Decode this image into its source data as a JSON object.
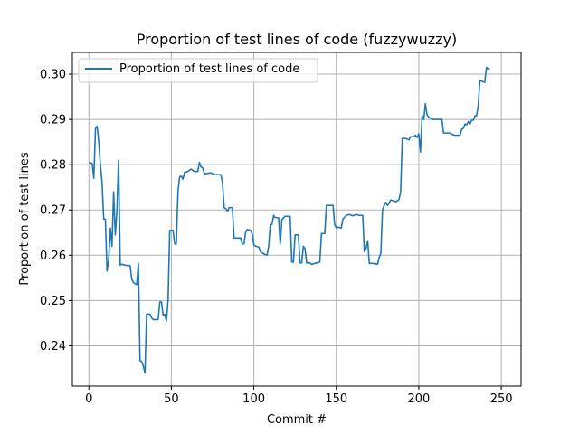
{
  "chart_data": {
    "type": "line",
    "title": "Proportion of test lines of code (fuzzywuzzy)",
    "xlabel": "Commit #",
    "ylabel": "Proportion of test lines",
    "xlim": [
      -10,
      262
    ],
    "ylim": [
      0.2311,
      0.3048
    ],
    "x_ticks": [
      0,
      50,
      100,
      150,
      200,
      250
    ],
    "y_ticks": [
      0.24,
      0.25,
      0.26,
      0.27,
      0.28,
      0.29,
      0.3
    ],
    "x_tick_labels": [
      "0",
      "50",
      "100",
      "150",
      "200",
      "250"
    ],
    "y_tick_labels": [
      "0.24",
      "0.25",
      "0.26",
      "0.27",
      "0.28",
      "0.29",
      "0.30"
    ],
    "grid": true,
    "legend": "upper-left",
    "series": [
      {
        "name": "Proportion of test lines of code",
        "color": "#1f77b4",
        "points": [
          [
            0,
            0.2805
          ],
          [
            2,
            0.2803
          ],
          [
            3,
            0.277
          ],
          [
            4,
            0.288
          ],
          [
            5,
            0.2885
          ],
          [
            6,
            0.285
          ],
          [
            7,
            0.28
          ],
          [
            8,
            0.276
          ],
          [
            9,
            0.268
          ],
          [
            10,
            0.268
          ],
          [
            11,
            0.2565
          ],
          [
            12,
            0.259
          ],
          [
            13,
            0.266
          ],
          [
            14,
            0.262
          ],
          [
            15,
            0.274
          ],
          [
            16,
            0.2645
          ],
          [
            17,
            0.27
          ],
          [
            18,
            0.281
          ],
          [
            19,
            0.2578
          ],
          [
            20,
            0.258
          ],
          [
            22,
            0.2578
          ],
          [
            25,
            0.2577
          ],
          [
            26,
            0.2547
          ],
          [
            27,
            0.254
          ],
          [
            28,
            0.2537
          ],
          [
            29,
            0.2535
          ],
          [
            30,
            0.2582
          ],
          [
            31,
            0.2367
          ],
          [
            32,
            0.2365
          ],
          [
            33,
            0.2355
          ],
          [
            34,
            0.234
          ],
          [
            35,
            0.247
          ],
          [
            37,
            0.247
          ],
          [
            38,
            0.2462
          ],
          [
            39,
            0.2458
          ],
          [
            42,
            0.2458
          ],
          [
            43,
            0.2497
          ],
          [
            44,
            0.2497
          ],
          [
            45,
            0.2468
          ],
          [
            46,
            0.247
          ],
          [
            47,
            0.2455
          ],
          [
            48,
            0.25
          ],
          [
            49,
            0.2655
          ],
          [
            51,
            0.2655
          ],
          [
            52,
            0.2625
          ],
          [
            53,
            0.2625
          ],
          [
            54,
            0.274
          ],
          [
            55,
            0.2773
          ],
          [
            56,
            0.2775
          ],
          [
            57,
            0.2768
          ],
          [
            58,
            0.2783
          ],
          [
            60,
            0.2785
          ],
          [
            61,
            0.2788
          ],
          [
            62,
            0.279
          ],
          [
            64,
            0.2785
          ],
          [
            66,
            0.2785
          ],
          [
            67,
            0.2805
          ],
          [
            68,
            0.2795
          ],
          [
            69,
            0.2793
          ],
          [
            70,
            0.278
          ],
          [
            72,
            0.2781
          ],
          [
            74,
            0.2782
          ],
          [
            76,
            0.2778
          ],
          [
            78,
            0.2778
          ],
          [
            80,
            0.2778
          ],
          [
            81,
            0.276
          ],
          [
            82,
            0.2705
          ],
          [
            83,
            0.2703
          ],
          [
            84,
            0.2697
          ],
          [
            85,
            0.2705
          ],
          [
            87,
            0.2705
          ],
          [
            88,
            0.2638
          ],
          [
            92,
            0.2638
          ],
          [
            93,
            0.2625
          ],
          [
            94,
            0.2625
          ],
          [
            95,
            0.265
          ],
          [
            96,
            0.2657
          ],
          [
            98,
            0.2655
          ],
          [
            99,
            0.2647
          ],
          [
            100,
            0.2623
          ],
          [
            101,
            0.262
          ],
          [
            103,
            0.2618
          ],
          [
            104,
            0.2608
          ],
          [
            106,
            0.2603
          ],
          [
            108,
            0.26
          ],
          [
            109,
            0.262
          ],
          [
            110,
            0.2668
          ],
          [
            111,
            0.2668
          ],
          [
            112,
            0.2688
          ],
          [
            113,
            0.2683
          ],
          [
            115,
            0.2683
          ],
          [
            116,
            0.2625
          ],
          [
            117,
            0.2678
          ],
          [
            118,
            0.2683
          ],
          [
            119,
            0.2686
          ],
          [
            122,
            0.2686
          ],
          [
            123,
            0.2585
          ],
          [
            124,
            0.2585
          ],
          [
            125,
            0.2645
          ],
          [
            127,
            0.2645
          ],
          [
            128,
            0.2583
          ],
          [
            129,
            0.2583
          ],
          [
            130,
            0.262
          ],
          [
            131,
            0.2615
          ],
          [
            132,
            0.2583
          ],
          [
            134,
            0.2583
          ],
          [
            135,
            0.258
          ],
          [
            137,
            0.2582
          ],
          [
            140,
            0.2585
          ],
          [
            141,
            0.2648
          ],
          [
            143,
            0.2648
          ],
          [
            144,
            0.271
          ],
          [
            148,
            0.271
          ],
          [
            149,
            0.2668
          ],
          [
            150,
            0.266
          ],
          [
            151,
            0.2662
          ],
          [
            153,
            0.266
          ],
          [
            154,
            0.268
          ],
          [
            156,
            0.2688
          ],
          [
            158,
            0.269
          ],
          [
            160,
            0.2687
          ],
          [
            162,
            0.269
          ],
          [
            164,
            0.2688
          ],
          [
            166,
            0.2688
          ],
          [
            167,
            0.2608
          ],
          [
            168,
            0.2615
          ],
          [
            169,
            0.2632
          ],
          [
            170,
            0.2582
          ],
          [
            172,
            0.2582
          ],
          [
            175,
            0.258
          ],
          [
            176,
            0.2595
          ],
          [
            177,
            0.2605
          ],
          [
            178,
            0.27
          ],
          [
            179,
            0.271
          ],
          [
            180,
            0.2717
          ],
          [
            181,
            0.271
          ],
          [
            182,
            0.2715
          ],
          [
            183,
            0.2722
          ],
          [
            185,
            0.272
          ],
          [
            186,
            0.2718
          ],
          [
            188,
            0.2723
          ],
          [
            189,
            0.274
          ],
          [
            190,
            0.2858
          ],
          [
            192,
            0.2858
          ],
          [
            194,
            0.2855
          ],
          [
            195,
            0.2862
          ],
          [
            197,
            0.2862
          ],
          [
            198,
            0.2865
          ],
          [
            199,
            0.286
          ],
          [
            200,
            0.2868
          ],
          [
            201,
            0.2828
          ],
          [
            202,
            0.2908
          ],
          [
            203,
            0.29
          ],
          [
            204,
            0.2935
          ],
          [
            205,
            0.291
          ],
          [
            206,
            0.2905
          ],
          [
            208,
            0.29
          ],
          [
            210,
            0.29
          ],
          [
            212,
            0.29
          ],
          [
            214,
            0.29
          ],
          [
            215,
            0.287
          ],
          [
            217,
            0.287
          ],
          [
            219,
            0.287
          ],
          [
            220,
            0.2867
          ],
          [
            222,
            0.2865
          ],
          [
            225,
            0.2865
          ],
          [
            226,
            0.2878
          ],
          [
            227,
            0.288
          ],
          [
            228,
            0.289
          ],
          [
            229,
            0.2888
          ],
          [
            230,
            0.2895
          ],
          [
            231,
            0.289
          ],
          [
            232,
            0.2898
          ],
          [
            233,
            0.2898
          ],
          [
            234,
            0.2908
          ],
          [
            235,
            0.2908
          ],
          [
            236,
            0.293
          ],
          [
            237,
            0.2985
          ],
          [
            238,
            0.2985
          ],
          [
            239,
            0.2983
          ],
          [
            240,
            0.2982
          ],
          [
            241,
            0.3015
          ],
          [
            242,
            0.3012
          ],
          [
            243,
            0.3012
          ]
        ]
      }
    ]
  }
}
